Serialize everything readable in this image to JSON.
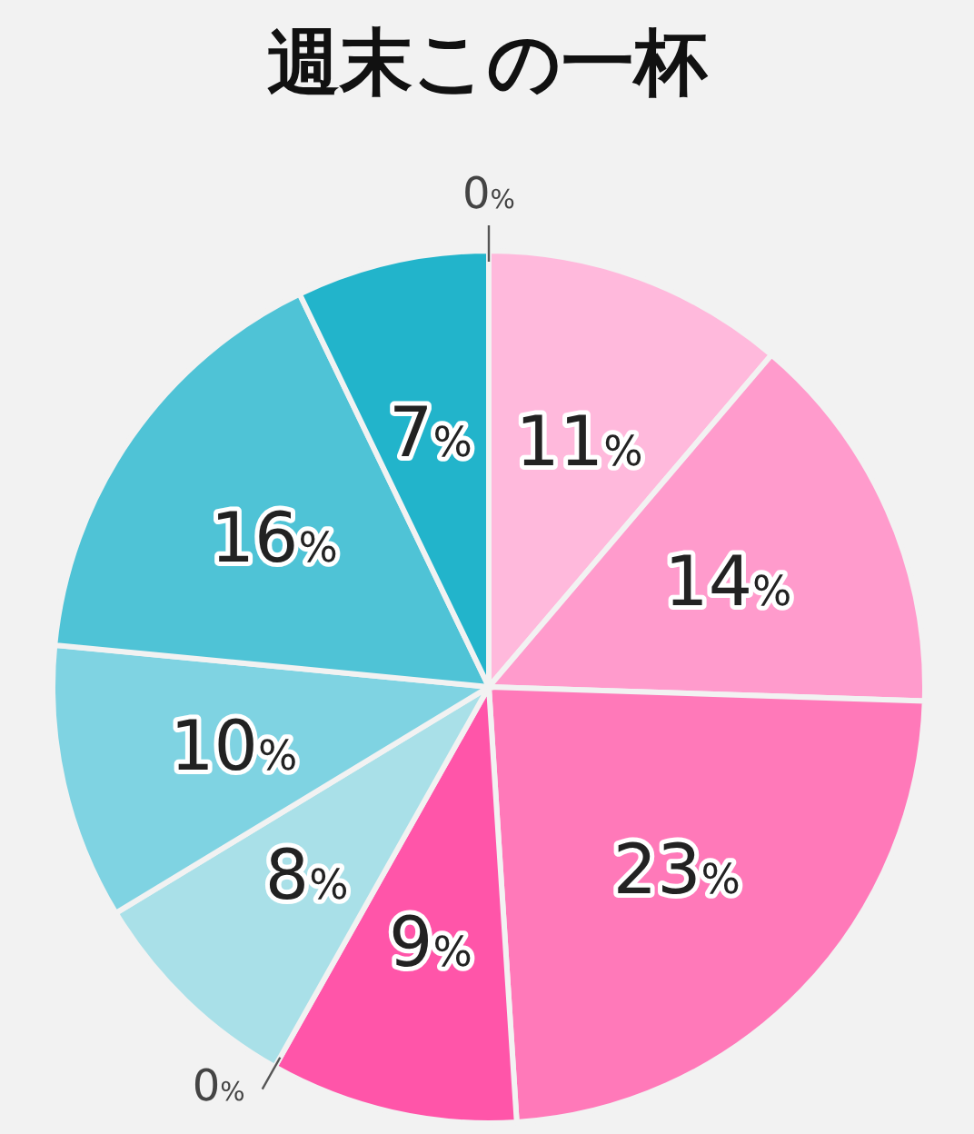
{
  "chart_data": {
    "type": "pie",
    "title": "週末この一杯",
    "categories": [
      null,
      null,
      null,
      null,
      null,
      null,
      null,
      null,
      null,
      null
    ],
    "values": [
      0,
      11,
      14,
      23,
      9,
      0,
      8,
      10,
      16,
      7
    ],
    "value_labels": [
      "0%",
      "11%",
      "14%",
      "23%",
      "9%",
      "0%",
      "8%",
      "10%",
      "16%",
      "7%"
    ],
    "colors": [
      "#d9eef2",
      "#ffb9dc",
      "#ff9bcc",
      "#ff79b9",
      "#ff55a9",
      "#c8e9ee",
      "#a9e0e8",
      "#7fd3e2",
      "#4fc3d6",
      "#22b4cb"
    ]
  }
}
